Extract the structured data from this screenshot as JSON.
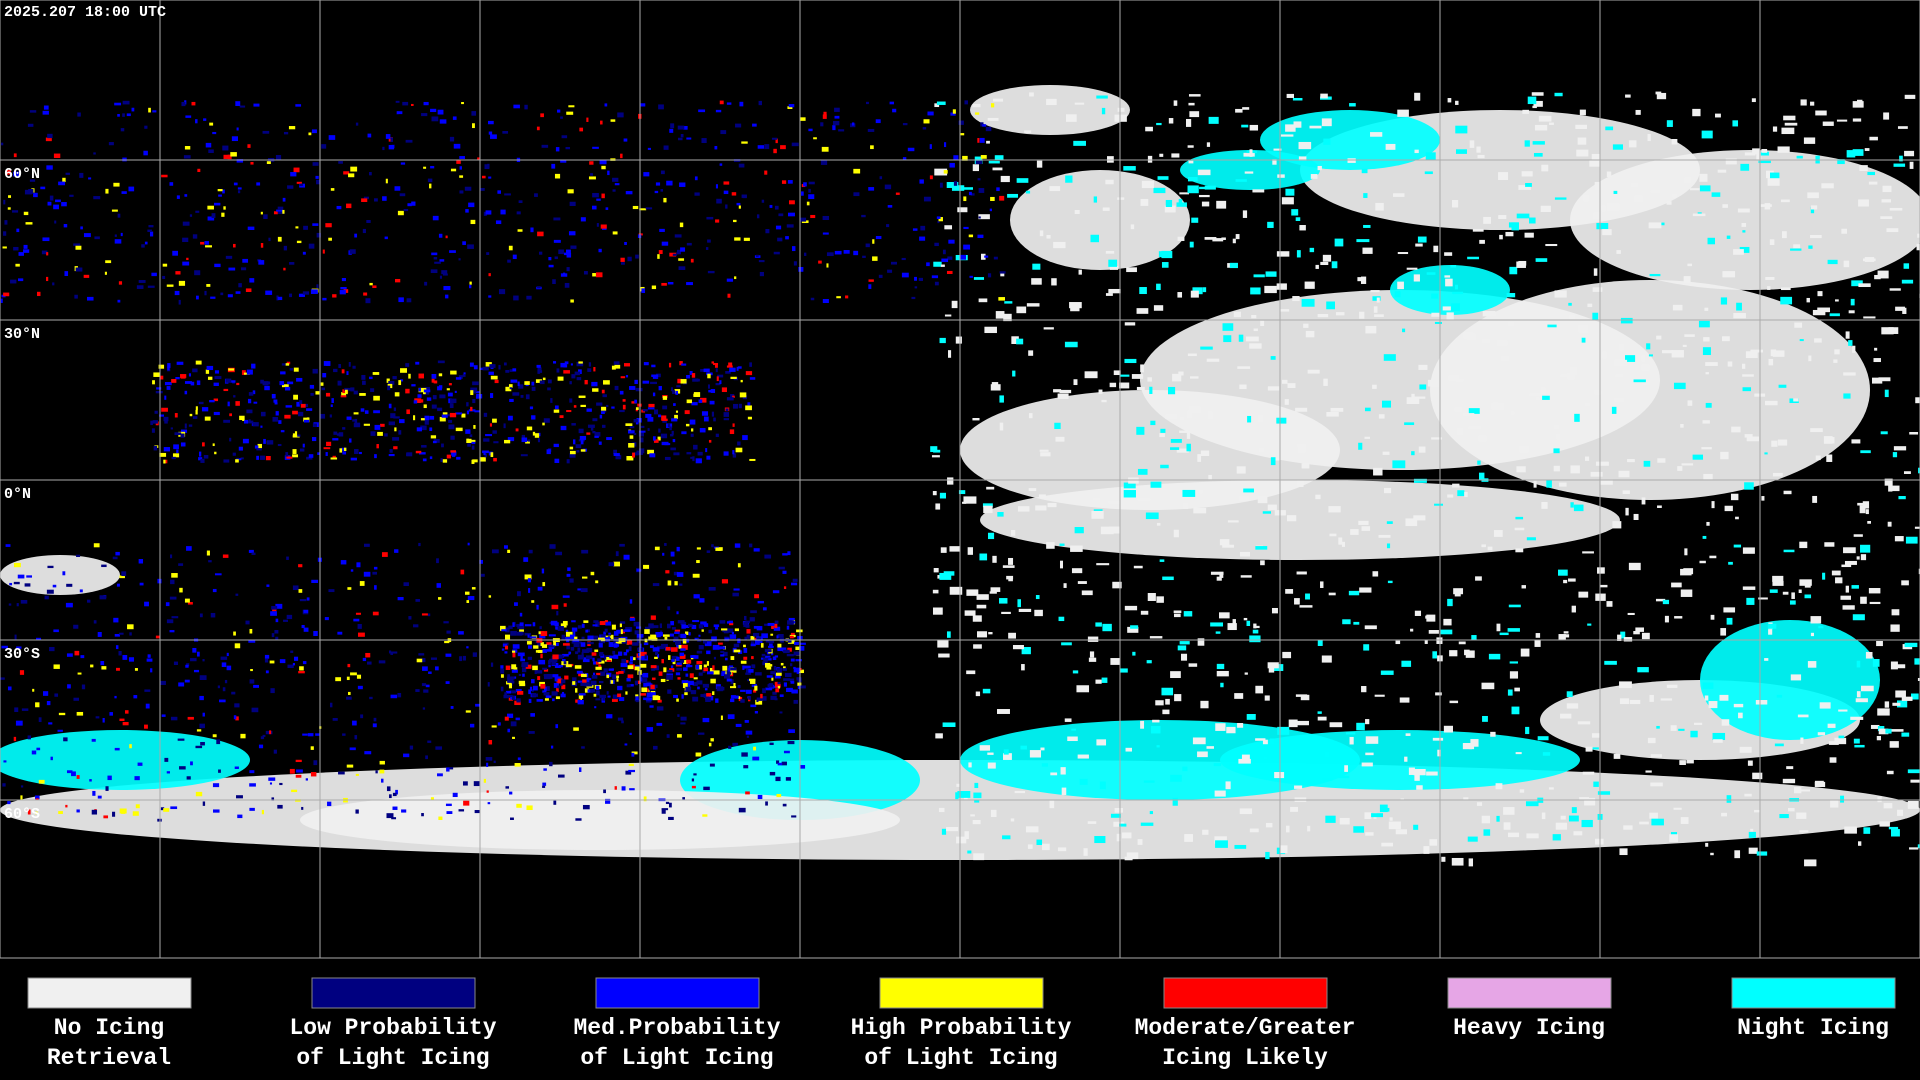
{
  "timestamp": "2025.207 18:00 UTC",
  "latitude_labels": [
    "60°N",
    "30°N",
    "0°N",
    "30°S",
    "60°S"
  ],
  "legend": [
    {
      "line1": "No Icing",
      "line2": "Retrieval",
      "color": "#f0f0f0"
    },
    {
      "line1": "Low Probability",
      "line2": "of Light Icing",
      "color": "#000080"
    },
    {
      "line1": "Med.Probability",
      "line2": "of Light Icing",
      "color": "#0000ff"
    },
    {
      "line1": "High Probability",
      "line2": "of Light Icing",
      "color": "#ffff00"
    },
    {
      "line1": "Moderate/Greater",
      "line2": "Icing Likely",
      "color": "#ff0000"
    },
    {
      "line1": "Heavy Icing",
      "line2": "",
      "color": "#e6a6e6"
    },
    {
      "line1": "Night Icing",
      "line2": "",
      "color": "#00ffff"
    }
  ]
}
